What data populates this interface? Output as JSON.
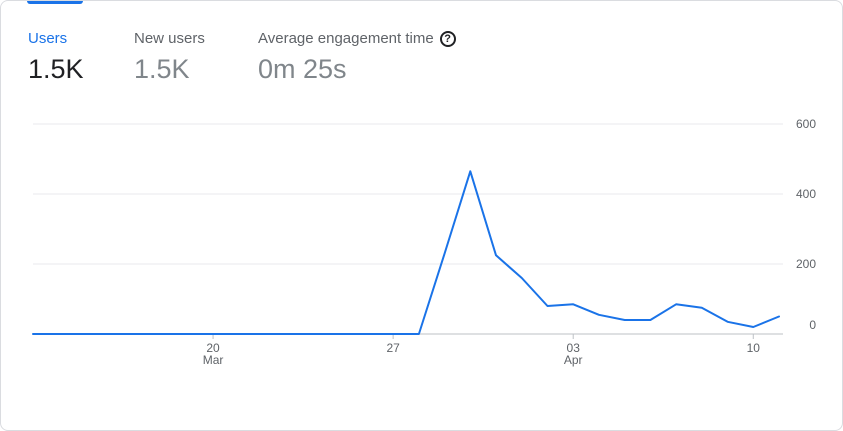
{
  "metrics": [
    {
      "label": "Users",
      "value": "1.5K",
      "active": true
    },
    {
      "label": "New users",
      "value": "1.5K",
      "active": false
    },
    {
      "label": "Average engagement time",
      "value": "0m 25s",
      "active": false,
      "icon": "help-icon"
    }
  ],
  "colors": {
    "accent": "#1a73e8",
    "line": "#1a73e8",
    "grid": "#e8eaed",
    "axis_text": "#5f6368"
  },
  "chart_data": {
    "type": "line",
    "title": "",
    "xlabel": "",
    "ylabel": "",
    "ylim": [
      0,
      600
    ],
    "y_ticks": [
      0,
      200,
      400,
      600
    ],
    "grid": true,
    "x": [
      "Mar 13",
      "Mar 14",
      "Mar 15",
      "Mar 16",
      "Mar 17",
      "Mar 18",
      "Mar 19",
      "Mar 20",
      "Mar 21",
      "Mar 22",
      "Mar 23",
      "Mar 24",
      "Mar 25",
      "Mar 26",
      "Mar 27",
      "Mar 28",
      "Mar 29",
      "Mar 30",
      "Mar 31",
      "Apr 1",
      "Apr 2",
      "Apr 3",
      "Apr 4",
      "Apr 5",
      "Apr 6",
      "Apr 7",
      "Apr 8",
      "Apr 9",
      "Apr 10",
      "Apr 11"
    ],
    "x_ticks": [
      {
        "index": 7,
        "day": "20",
        "month": "Mar"
      },
      {
        "index": 14,
        "day": "27",
        "month": ""
      },
      {
        "index": 21,
        "day": "03",
        "month": "Apr"
      },
      {
        "index": 28,
        "day": "10",
        "month": ""
      }
    ],
    "series": [
      {
        "values": [
          0,
          0,
          0,
          0,
          0,
          0,
          0,
          0,
          0,
          0,
          0,
          0,
          0,
          0,
          0,
          0,
          230,
          465,
          225,
          160,
          80,
          85,
          55,
          40,
          40,
          85,
          75,
          35,
          20,
          50
        ]
      }
    ]
  }
}
